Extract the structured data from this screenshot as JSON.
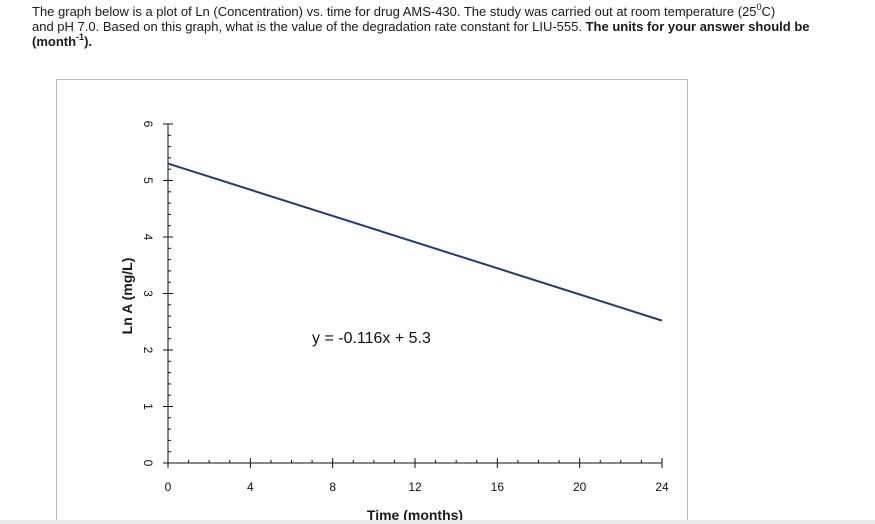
{
  "question": {
    "line1_a": "The graph below is a plot of Ln (Concentration) vs. time for drug AMS-430. The study was carried out at room temperature (25",
    "line1_sup": "0",
    "line1_b": "C)",
    "line2": "and pH 7.0. Based on this graph, what is the value of the degradation rate constant for LIU-555.",
    "bold_a": "The units for your answer should be (month",
    "bold_sup": "-1",
    "bold_b": ")."
  },
  "chart_data": {
    "type": "line",
    "xlabel": "Time (months)",
    "ylabel": "Ln A (mg/L)",
    "xlim": [
      0,
      24
    ],
    "ylim": [
      0,
      6
    ],
    "x_ticks": [
      0,
      4,
      8,
      12,
      16,
      20,
      24
    ],
    "y_ticks": [
      0,
      1,
      2,
      3,
      4,
      5,
      6
    ],
    "series": [
      {
        "x": [
          0,
          24
        ],
        "y": [
          5.3,
          2.52
        ],
        "color": "#1f3d7a"
      }
    ],
    "annotation": "y = -0.116x + 5.3",
    "grid": false,
    "legend": "none"
  }
}
